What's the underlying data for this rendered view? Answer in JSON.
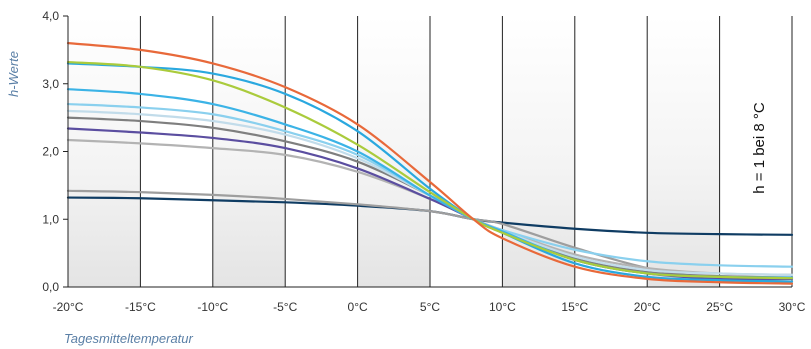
{
  "chart_data": {
    "type": "line",
    "xlabel": "Tagesmitteltemperatur",
    "ylabel": "h-Werte",
    "annotation": "h = 1 bei 8 °C",
    "xlim": [
      -20,
      30
    ],
    "ylim": [
      0,
      4
    ],
    "x_ticks": [
      -20,
      -15,
      -10,
      -5,
      0,
      5,
      10,
      15,
      20,
      25,
      30
    ],
    "x_tick_labels": [
      "-20°C",
      "-15°C",
      "-10°C",
      "-5°C",
      "0°C",
      "5°C",
      "10°C",
      "15°C",
      "20°C",
      "25°C",
      "30°C"
    ],
    "y_ticks": [
      0,
      1,
      2,
      3,
      4
    ],
    "y_tick_labels": [
      "0,0",
      "1,0",
      "2,0",
      "3,0",
      "4,0"
    ],
    "grid": "vertical lines every 5 °C, alternating shaded bands",
    "x": [
      -20,
      -15,
      -10,
      -5,
      0,
      5,
      8,
      10,
      15,
      20,
      25,
      30
    ],
    "series": [
      {
        "color": "#e8693a",
        "values": [
          3.6,
          3.5,
          3.3,
          2.95,
          2.4,
          1.55,
          1.0,
          0.72,
          0.3,
          0.12,
          0.07,
          0.05
        ]
      },
      {
        "color": "#aacb3c",
        "values": [
          3.32,
          3.25,
          3.05,
          2.65,
          2.1,
          1.4,
          1.0,
          0.8,
          0.4,
          0.2,
          0.15,
          0.13
        ]
      },
      {
        "color": "#2aa8df",
        "values": [
          3.3,
          3.25,
          3.15,
          2.85,
          2.3,
          1.45,
          1.0,
          0.8,
          0.35,
          0.15,
          0.1,
          0.08
        ]
      },
      {
        "color": "#3bb3e6",
        "values": [
          2.92,
          2.85,
          2.7,
          2.4,
          2.0,
          1.35,
          1.0,
          0.82,
          0.4,
          0.2,
          0.15,
          0.14
        ]
      },
      {
        "color": "#8ad0ee",
        "values": [
          2.7,
          2.65,
          2.55,
          2.3,
          1.95,
          1.35,
          1.0,
          0.84,
          0.55,
          0.38,
          0.32,
          0.3
        ]
      },
      {
        "color": "#c2dcea",
        "values": [
          2.6,
          2.55,
          2.45,
          2.25,
          1.9,
          1.35,
          1.0,
          0.83,
          0.45,
          0.25,
          0.2,
          0.18
        ]
      },
      {
        "color": "#7f7f7f",
        "values": [
          2.5,
          2.45,
          2.35,
          2.15,
          1.85,
          1.35,
          1.0,
          0.82,
          0.42,
          0.22,
          0.16,
          0.14
        ]
      },
      {
        "color": "#5b4ea0",
        "values": [
          2.34,
          2.28,
          2.2,
          2.05,
          1.75,
          1.3,
          1.0,
          0.82,
          0.4,
          0.2,
          0.12,
          0.12
        ]
      },
      {
        "color": "#b3b3b3",
        "values": [
          2.17,
          2.12,
          2.05,
          1.95,
          1.7,
          1.3,
          1.0,
          0.84,
          0.48,
          0.28,
          0.2,
          0.18
        ]
      },
      {
        "color": "#9e9e9e",
        "values": [
          1.42,
          1.4,
          1.36,
          1.3,
          1.22,
          1.12,
          1.0,
          0.93,
          0.58,
          0.28,
          0.12,
          0.08
        ]
      },
      {
        "color": "#0f3c63",
        "values": [
          1.32,
          1.31,
          1.28,
          1.25,
          1.2,
          1.12,
          1.0,
          0.95,
          0.86,
          0.8,
          0.78,
          0.77
        ]
      }
    ]
  }
}
